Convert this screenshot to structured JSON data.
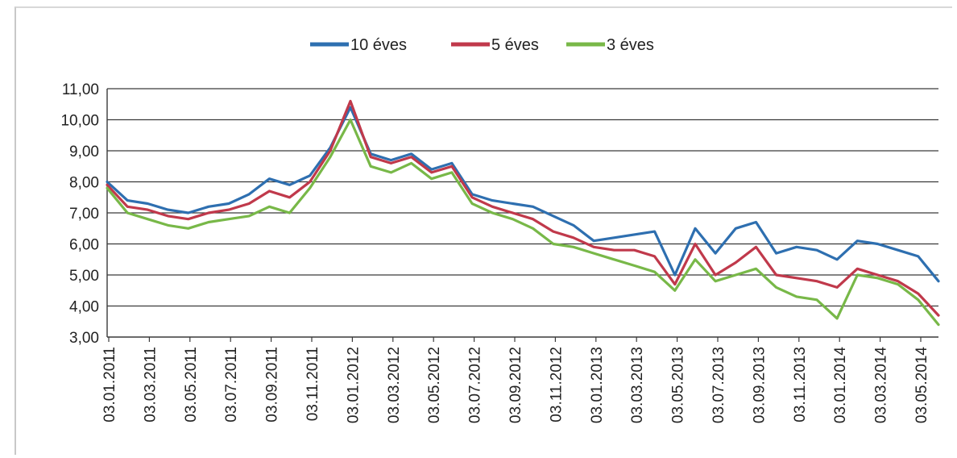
{
  "chart_data": {
    "type": "line",
    "title": "",
    "xlabel": "",
    "ylabel": "",
    "ylim": [
      3.0,
      11.0
    ],
    "yticks": [
      "3,00",
      "4,00",
      "5,00",
      "6,00",
      "7,00",
      "8,00",
      "9,00",
      "10,00",
      "11,00"
    ],
    "xticks": [
      "03.01.2011",
      "03.03.2011",
      "03.05.2011",
      "03.07.2011",
      "03.09.2011",
      "03.11.2011",
      "03.01.2012",
      "03.03.2012",
      "03.05.2012",
      "03.07.2012",
      "03.09.2012",
      "03.11.2012",
      "03.01.2013",
      "03.03.2013",
      "03.05.2013",
      "03.07.2013",
      "03.09.2013",
      "03.11.2013",
      "03.01.2014",
      "03.03.2014",
      "03.05.2014"
    ],
    "grid": true,
    "legend_position": "top-center",
    "x": [
      "2011-01",
      "2011-02",
      "2011-03",
      "2011-04",
      "2011-05",
      "2011-06",
      "2011-07",
      "2011-08",
      "2011-09",
      "2011-10",
      "2011-11",
      "2011-12",
      "2012-01",
      "2012-02",
      "2012-03",
      "2012-04",
      "2012-05",
      "2012-06",
      "2012-07",
      "2012-08",
      "2012-09",
      "2012-10",
      "2012-11",
      "2012-12",
      "2013-01",
      "2013-02",
      "2013-03",
      "2013-04",
      "2013-05",
      "2013-06",
      "2013-07",
      "2013-08",
      "2013-09",
      "2013-10",
      "2013-11",
      "2013-12",
      "2014-01",
      "2014-02",
      "2014-03",
      "2014-04",
      "2014-05",
      "2014-06"
    ],
    "series": [
      {
        "name": "10 éves",
        "color": "#2e6fb0",
        "values": [
          8.0,
          7.4,
          7.3,
          7.1,
          7.0,
          7.2,
          7.3,
          7.6,
          8.1,
          7.9,
          8.2,
          9.1,
          10.4,
          8.9,
          8.7,
          8.9,
          8.4,
          8.6,
          7.6,
          7.4,
          7.3,
          7.2,
          6.9,
          6.6,
          6.1,
          6.2,
          6.3,
          6.4,
          5.0,
          6.5,
          5.7,
          6.5,
          6.7,
          5.7,
          5.9,
          5.8,
          5.5,
          6.1,
          6.0,
          5.8,
          5.6,
          4.8
        ]
      },
      {
        "name": "5 éves",
        "color": "#c0394b",
        "values": [
          7.9,
          7.2,
          7.1,
          6.9,
          6.8,
          7.0,
          7.1,
          7.3,
          7.7,
          7.5,
          8.0,
          9.0,
          10.6,
          8.8,
          8.6,
          8.8,
          8.3,
          8.5,
          7.5,
          7.2,
          7.0,
          6.8,
          6.4,
          6.2,
          5.9,
          5.8,
          5.8,
          5.6,
          4.7,
          6.0,
          5.0,
          5.4,
          5.9,
          5.0,
          4.9,
          4.8,
          4.6,
          5.2,
          5.0,
          4.8,
          4.4,
          3.7
        ]
      },
      {
        "name": "3 éves",
        "color": "#78b848",
        "values": [
          7.8,
          7.0,
          6.8,
          6.6,
          6.5,
          6.7,
          6.8,
          6.9,
          7.2,
          7.0,
          7.8,
          8.8,
          10.0,
          8.5,
          8.3,
          8.6,
          8.1,
          8.3,
          7.3,
          7.0,
          6.8,
          6.5,
          6.0,
          5.9,
          5.7,
          5.5,
          5.3,
          5.1,
          4.5,
          5.5,
          4.8,
          5.0,
          5.2,
          4.6,
          4.3,
          4.2,
          3.6,
          5.0,
          4.9,
          4.7,
          4.2,
          3.4
        ]
      }
    ]
  }
}
